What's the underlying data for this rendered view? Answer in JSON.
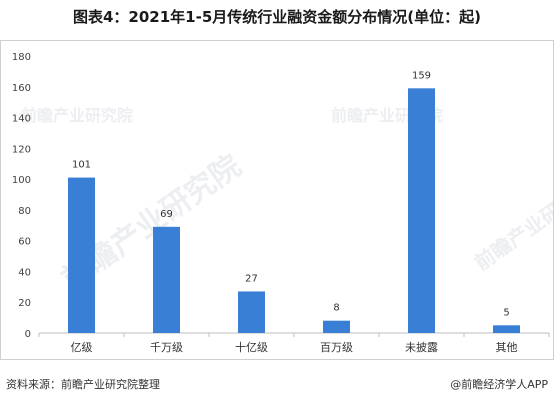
{
  "title": "图表4：2021年1-5月传统行业融资金额分布情况(单位：起)",
  "source": "资料来源：前瞻产业研究院整理",
  "credit": "@前瞻经济学人APP",
  "watermark": "前瞻产业研究院",
  "colors": {
    "bar": "#3a7fd6",
    "axis": "#bfbfbf",
    "border": "#cfcfcf"
  },
  "chart_data": {
    "type": "bar",
    "categories": [
      "亿级",
      "千万级",
      "十亿级",
      "百万级",
      "未披露",
      "其他"
    ],
    "values": [
      101,
      69,
      27,
      8,
      159,
      5
    ],
    "ylim": [
      0,
      180
    ],
    "yticks": [
      0,
      20,
      40,
      60,
      80,
      100,
      120,
      140,
      160,
      180
    ],
    "grid": false,
    "legend": "none"
  }
}
